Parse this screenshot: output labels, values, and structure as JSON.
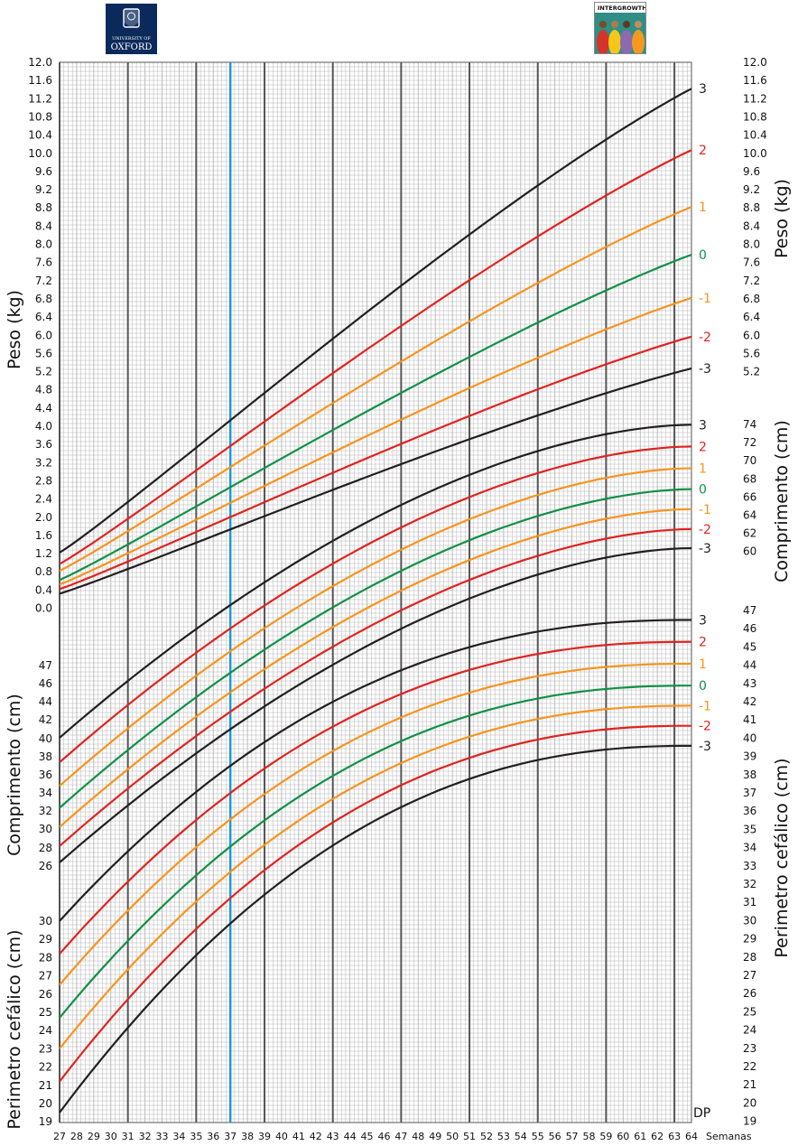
{
  "logos": {
    "left_line1": "UNIVERSITY OF",
    "left_line2": "OXFORD",
    "right_text": "INTERGROWTH-21st"
  },
  "colors": {
    "sd3": "#231f20",
    "sd2": "#e0231f",
    "sd1": "#f7941d",
    "sd0": "#109146",
    "highlight": "#1a9ad6",
    "grid_major": "#555555",
    "grid_minor": "#b5b5b5"
  },
  "chart_data": {
    "type": "line",
    "x_label": "Semanas",
    "x_range": [
      27,
      64
    ],
    "x_ticks": [
      27,
      28,
      29,
      30,
      31,
      32,
      33,
      34,
      35,
      36,
      37,
      38,
      39,
      40,
      41,
      42,
      43,
      44,
      45,
      46,
      47,
      48,
      49,
      50,
      51,
      52,
      53,
      54,
      55,
      56,
      57,
      58,
      59,
      60,
      61,
      62,
      63,
      64
    ],
    "highlight_week": 37,
    "sd_header": "DP",
    "panels": [
      {
        "name": "Peso (kg)",
        "axis_label": "Peso (kg)",
        "ticks_left": [
          "12.0",
          "11.6",
          "11.2",
          "10.8",
          "10.4",
          "10.0",
          "9.6",
          "9.2",
          "8.8",
          "8.4",
          "8.0",
          "7.6",
          "7.2",
          "6.8",
          "6.4",
          "6.0",
          "5.6",
          "5.2",
          "4.8",
          "4.4",
          "4.0",
          "3.6",
          "3.2",
          "2.8",
          "2.4",
          "2.0",
          "1.6",
          "1.2",
          "0.8",
          "0.4",
          "0.0"
        ],
        "ticks_right": [
          "12.0",
          "11.6",
          "11.2",
          "10.8",
          "10.4",
          "10.0",
          "9.6",
          "9.2",
          "8.8",
          "8.4",
          "8.0",
          "7.6",
          "7.2",
          "6.8",
          "6.4",
          "6.0",
          "5.6",
          "5.2"
        ],
        "series": [
          {
            "sd": "3",
            "at27": 1.25,
            "at64": 11.45
          },
          {
            "sd": "2",
            "at27": 1.0,
            "at64": 10.1
          },
          {
            "sd": "1",
            "at27": 0.85,
            "at64": 8.85
          },
          {
            "sd": "0",
            "at27": 0.65,
            "at64": 7.8
          },
          {
            "sd": "-1",
            "at27": 0.55,
            "at64": 6.85
          },
          {
            "sd": "-2",
            "at27": 0.45,
            "at64": 6.0
          },
          {
            "sd": "-3",
            "at27": 0.35,
            "at64": 5.3
          }
        ]
      },
      {
        "name": "Comprimento (cm)",
        "axis_label_left": "Comprimento (cm)",
        "axis_label_right": "Comprimento (cm)",
        "ticks_left": [
          "47",
          "46",
          "44",
          "42",
          "40",
          "38",
          "36",
          "34",
          "32",
          "30",
          "28",
          "26"
        ],
        "ticks_right": [
          "74",
          "72",
          "70",
          "68",
          "66",
          "64",
          "62",
          "60"
        ],
        "series": [
          {
            "sd": "3",
            "at27": 40.1,
            "at64": 74.3
          },
          {
            "sd": "2",
            "at27": 37.4,
            "at64": 71.9
          },
          {
            "sd": "1",
            "at27": 34.8,
            "at64": 69.5
          },
          {
            "sd": "0",
            "at27": 32.4,
            "at64": 67.2
          },
          {
            "sd": "-1",
            "at27": 30.3,
            "at64": 65.0
          },
          {
            "sd": "-2",
            "at27": 28.2,
            "at64": 62.8
          },
          {
            "sd": "-3",
            "at27": 26.4,
            "at64": 60.7
          }
        ]
      },
      {
        "name": "Perimetro cefálico (cm)",
        "axis_label_left": "Perimetro cefálico (cm)",
        "axis_label_right": "Perimetro cefálico (cm)",
        "ticks_left": [
          "30",
          "29",
          "28",
          "27",
          "26",
          "25",
          "24",
          "23",
          "22",
          "21",
          "20",
          "19"
        ],
        "ticks_right": [
          "47",
          "46",
          "45",
          "44",
          "43",
          "42",
          "41",
          "40",
          "39",
          "38",
          "37",
          "36",
          "35",
          "34",
          "33",
          "32",
          "31",
          "30",
          "29",
          "28",
          "27",
          "26",
          "25",
          "24",
          "23",
          "22",
          "21",
          "20",
          "19"
        ],
        "series": [
          {
            "sd": "3",
            "at27": 30.0,
            "at64": 46.5
          },
          {
            "sd": "2",
            "at27": 28.2,
            "at64": 45.3
          },
          {
            "sd": "1",
            "at27": 26.5,
            "at64": 44.1
          },
          {
            "sd": "0",
            "at27": 24.7,
            "at64": 42.9
          },
          {
            "sd": "-1",
            "at27": 23.0,
            "at64": 41.8
          },
          {
            "sd": "-2",
            "at27": 21.2,
            "at64": 40.7
          },
          {
            "sd": "-3",
            "at27": 19.5,
            "at64": 39.6
          }
        ]
      }
    ]
  }
}
